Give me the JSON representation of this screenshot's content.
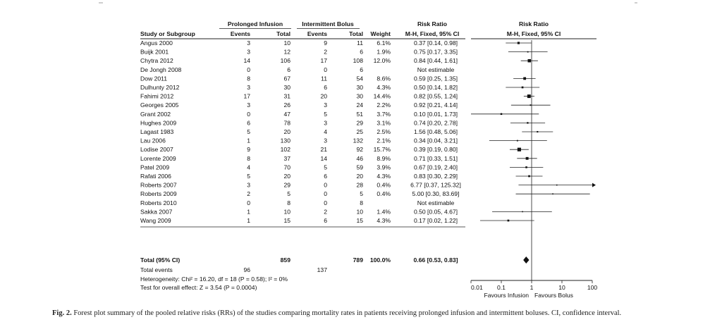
{
  "chart_data": {
    "type": "forest",
    "headers": {
      "group1": "Prolonged Infusion",
      "group2": "Intermittent Bolus",
      "rr": "Risk Ratio",
      "rr_plot": "Risk Ratio",
      "study": "Study or Subgroup",
      "events": "Events",
      "total": "Total",
      "weight": "Weight",
      "method": "M-H, Fixed, 95% CI"
    },
    "studies": [
      {
        "name": "Angus 2000",
        "e1": "3",
        "t1": "10",
        "e2": "9",
        "t2": "11",
        "weight": "6.1%",
        "ci_text": "0.37 [0.14, 0.98]",
        "rr": 0.37,
        "lo": 0.14,
        "hi": 0.98
      },
      {
        "name": "Buijk 2001",
        "e1": "3",
        "t1": "12",
        "e2": "2",
        "t2": "6",
        "weight": "1.9%",
        "ci_text": "0.75 [0.17, 3.35]",
        "rr": 0.75,
        "lo": 0.17,
        "hi": 3.35
      },
      {
        "name": "Chytra 2012",
        "e1": "14",
        "t1": "106",
        "e2": "17",
        "t2": "108",
        "weight": "12.0%",
        "ci_text": "0.84 [0.44, 1.61]",
        "rr": 0.84,
        "lo": 0.44,
        "hi": 1.61
      },
      {
        "name": "De Jongh 2008",
        "e1": "0",
        "t1": "6",
        "e2": "0",
        "t2": "6",
        "weight": "",
        "ci_text": "Not estimable",
        "rr": null,
        "lo": null,
        "hi": null
      },
      {
        "name": "Dow 2011",
        "e1": "8",
        "t1": "67",
        "e2": "11",
        "t2": "54",
        "weight": "8.6%",
        "ci_text": "0.59 [0.25, 1.35]",
        "rr": 0.59,
        "lo": 0.25,
        "hi": 1.35
      },
      {
        "name": "Dulhunty 2012",
        "e1": "3",
        "t1": "30",
        "e2": "6",
        "t2": "30",
        "weight": "4.3%",
        "ci_text": "0.50 [0.14, 1.82]",
        "rr": 0.5,
        "lo": 0.14,
        "hi": 1.82
      },
      {
        "name": "Fahimi 2012",
        "e1": "17",
        "t1": "31",
        "e2": "20",
        "t2": "30",
        "weight": "14.4%",
        "ci_text": "0.82 [0.55, 1.24]",
        "rr": 0.82,
        "lo": 0.55,
        "hi": 1.24
      },
      {
        "name": "Georges 2005",
        "e1": "3",
        "t1": "26",
        "e2": "3",
        "t2": "24",
        "weight": "2.2%",
        "ci_text": "0.92 [0.21, 4.14]",
        "rr": 0.92,
        "lo": 0.21,
        "hi": 4.14
      },
      {
        "name": "Grant 2002",
        "e1": "0",
        "t1": "47",
        "e2": "5",
        "t2": "51",
        "weight": "3.7%",
        "ci_text": "0.10 [0.01, 1.73]",
        "rr": 0.1,
        "lo": 0.01,
        "hi": 1.73
      },
      {
        "name": "Hughes 2009",
        "e1": "6",
        "t1": "78",
        "e2": "3",
        "t2": "29",
        "weight": "3.1%",
        "ci_text": "0.74 [0.20, 2.78]",
        "rr": 0.74,
        "lo": 0.2,
        "hi": 2.78
      },
      {
        "name": "Lagast 1983",
        "e1": "5",
        "t1": "20",
        "e2": "4",
        "t2": "25",
        "weight": "2.5%",
        "ci_text": "1.56 [0.48, 5.06]",
        "rr": 1.56,
        "lo": 0.48,
        "hi": 5.06
      },
      {
        "name": "Lau 2006",
        "e1": "1",
        "t1": "130",
        "e2": "3",
        "t2": "132",
        "weight": "2.1%",
        "ci_text": "0.34 [0.04, 3.21]",
        "rr": 0.34,
        "lo": 0.04,
        "hi": 3.21
      },
      {
        "name": "Lodise 2007",
        "e1": "9",
        "t1": "102",
        "e2": "21",
        "t2": "92",
        "weight": "15.7%",
        "ci_text": "0.39 [0.19, 0.80]",
        "rr": 0.39,
        "lo": 0.19,
        "hi": 0.8
      },
      {
        "name": "Lorente 2009",
        "e1": "8",
        "t1": "37",
        "e2": "14",
        "t2": "46",
        "weight": "8.9%",
        "ci_text": "0.71 [0.33, 1.51]",
        "rr": 0.71,
        "lo": 0.33,
        "hi": 1.51
      },
      {
        "name": "Patel 2009",
        "e1": "4",
        "t1": "70",
        "e2": "5",
        "t2": "59",
        "weight": "3.9%",
        "ci_text": "0.67 [0.19, 2.40]",
        "rr": 0.67,
        "lo": 0.19,
        "hi": 2.4
      },
      {
        "name": "Rafati 2006",
        "e1": "5",
        "t1": "20",
        "e2": "6",
        "t2": "20",
        "weight": "4.3%",
        "ci_text": "0.83 [0.30, 2.29]",
        "rr": 0.83,
        "lo": 0.3,
        "hi": 2.29
      },
      {
        "name": "Roberts 2007",
        "e1": "3",
        "t1": "29",
        "e2": "0",
        "t2": "28",
        "weight": "0.4%",
        "ci_text": "6.77 [0.37, 125.32]",
        "rr": 6.77,
        "lo": 0.37,
        "hi": 125.32
      },
      {
        "name": "Roberts 2009",
        "e1": "2",
        "t1": "5",
        "e2": "0",
        "t2": "5",
        "weight": "0.4%",
        "ci_text": "5.00 [0.30, 83.69]",
        "rr": 5.0,
        "lo": 0.3,
        "hi": 83.69
      },
      {
        "name": "Roberts 2010",
        "e1": "0",
        "t1": "8",
        "e2": "0",
        "t2": "8",
        "weight": "",
        "ci_text": "Not estimable",
        "rr": null,
        "lo": null,
        "hi": null
      },
      {
        "name": "Sakka 2007",
        "e1": "1",
        "t1": "10",
        "e2": "2",
        "t2": "10",
        "weight": "1.4%",
        "ci_text": "0.50 [0.05, 4.67]",
        "rr": 0.5,
        "lo": 0.05,
        "hi": 4.67
      },
      {
        "name": "Wang 2009",
        "e1": "1",
        "t1": "15",
        "e2": "6",
        "t2": "15",
        "weight": "4.3%",
        "ci_text": "0.17 [0.02, 1.22]",
        "rr": 0.17,
        "lo": 0.02,
        "hi": 1.22
      }
    ],
    "total": {
      "label": "Total (95% CI)",
      "t1": "859",
      "t2": "789",
      "weight": "100.0%",
      "ci_text": "0.66 [0.53, 0.83]",
      "rr": 0.66,
      "lo": 0.53,
      "hi": 0.83
    },
    "total_events": {
      "label": "Total events",
      "e1": "96",
      "e2": "137"
    },
    "heterogeneity": "Heterogeneity: Chi² = 16.20, df = 18 (P = 0.58); I² = 0%",
    "overall_effect": "Test for overall effect: Z = 3.54 (P = 0.0004)",
    "x_axis": {
      "scale": "log",
      "range": [
        0.01,
        100
      ],
      "ticks": [
        0.01,
        0.1,
        1,
        10,
        100
      ],
      "tick_labels": [
        "0.01",
        "0.1",
        "1",
        "10",
        "100"
      ],
      "left_label": "Favours Infusion",
      "right_label": "Favours Bolus"
    }
  },
  "caption": {
    "label": "Fig. 2.",
    "text": "Forest plot summary of the pooled relative risks (RRs) of the studies comparing mortality rates in patients receiving prolonged infusion and intermittent boluses. CI, confidence interval."
  }
}
